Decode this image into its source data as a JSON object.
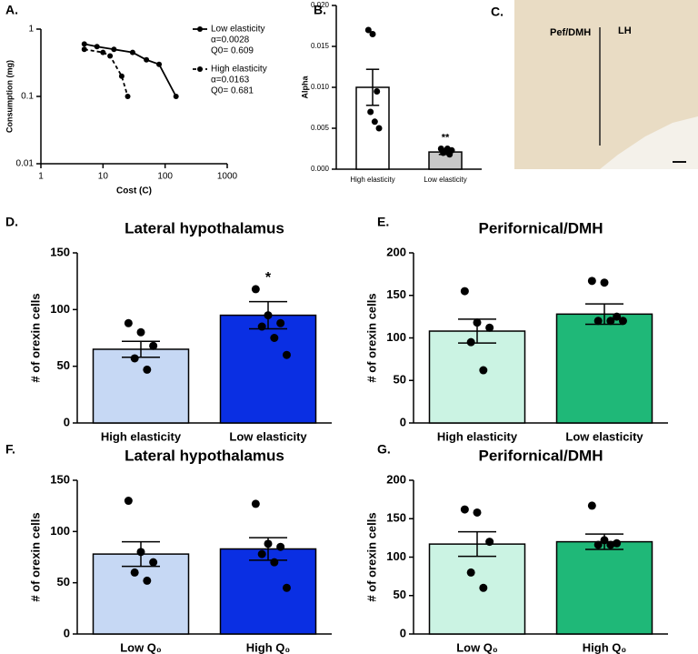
{
  "chart_data": [
    {
      "type": "line",
      "panel": "A.",
      "xlabel": "Cost (C)",
      "ylabel": "Consumption (mg)",
      "xscale": "log",
      "yscale": "log",
      "xlim": [
        1,
        1000
      ],
      "xticks": [
        1,
        10,
        100,
        1000
      ],
      "ylim": [
        0.01,
        1
      ],
      "yticks": [
        0.01,
        0.1,
        1
      ],
      "legend": "right",
      "series": [
        {
          "name": "Low elasticity",
          "color": "#000000",
          "dashed": false,
          "notes": [
            "α=0.0028",
            "Q0= 0.609"
          ],
          "x": [
            5,
            8,
            15,
            30,
            50,
            80,
            150
          ],
          "values": [
            0.6,
            0.55,
            0.5,
            0.45,
            0.35,
            0.3,
            0.1
          ]
        },
        {
          "name": "High elasticity",
          "color": "#000000",
          "dashed": true,
          "notes": [
            "α=0.0163",
            "Q0= 0.681"
          ],
          "x": [
            5,
            10,
            13,
            20,
            25
          ],
          "values": [
            0.5,
            0.45,
            0.4,
            0.2,
            0.1
          ]
        }
      ]
    },
    {
      "type": "bar",
      "panel": "B.",
      "ylabel": "Alpha",
      "annotation": "**",
      "annotation_index": 1,
      "categories": [
        "High elasticity",
        "Low elasticity"
      ],
      "values": [
        0.01,
        0.0021
      ],
      "errors": [
        0.0022,
        0.0003
      ],
      "colors": [
        "#ffffff",
        "#c8c8c8"
      ],
      "points": [
        [
          0.017,
          0.0165,
          0.0095,
          0.007,
          0.0058,
          0.005
        ],
        [
          0.0025,
          0.0022,
          0.0018,
          0.002,
          0.0025,
          0.0023
        ]
      ],
      "ylim": [
        0,
        0.02
      ],
      "yticks": [
        {
          "value": 0,
          "label": "0.000"
        },
        {
          "value": 0.005,
          "label": "0.005"
        },
        {
          "value": 0.01,
          "label": "0.010"
        },
        {
          "value": 0.015,
          "label": "0.015"
        },
        {
          "value": 0.02,
          "label": "0.020"
        }
      ]
    },
    {
      "type": "image",
      "panel": "C.",
      "labels": [
        "Pef/DMH",
        "LH"
      ]
    },
    {
      "type": "bar",
      "panel": "D.",
      "title": "Lateral hypothalamus",
      "ylabel": "# of orexin cells",
      "annotation": "*",
      "annotation_index": 1,
      "categories": [
        "High elasticity",
        "Low elasticity"
      ],
      "values": [
        65,
        95
      ],
      "errors": [
        7,
        12
      ],
      "colors": [
        "#c6d8f4",
        "#0a2fe3"
      ],
      "points": [
        [
          88,
          80,
          68,
          57,
          47
        ],
        [
          118,
          95,
          88,
          85,
          75,
          60
        ]
      ],
      "ylim": [
        0,
        150
      ],
      "yticks": [
        0,
        50,
        100,
        150
      ]
    },
    {
      "type": "bar",
      "panel": "E.",
      "title": "Perifornical/DMH",
      "ylabel": "# of orexin cells",
      "categories": [
        "High elasticity",
        "Low elasticity"
      ],
      "values": [
        108,
        128
      ],
      "errors": [
        14,
        12
      ],
      "colors": [
        "#cbf3e3",
        "#1fb878"
      ],
      "points": [
        [
          155,
          118,
          112,
          95,
          62
        ],
        [
          167,
          165,
          125,
          120,
          120,
          120
        ]
      ],
      "ylim": [
        0,
        200
      ],
      "yticks": [
        0,
        50,
        100,
        150,
        200
      ]
    },
    {
      "type": "bar",
      "panel": "F.",
      "title": "Lateral hypothalamus",
      "ylabel": "# of orexin cells",
      "categories": [
        "Low Q₀",
        "High Q₀"
      ],
      "values": [
        78,
        83
      ],
      "errors": [
        12,
        11
      ],
      "colors": [
        "#c6d8f4",
        "#0a2fe3"
      ],
      "points": [
        [
          130,
          80,
          70,
          60,
          52
        ],
        [
          127,
          88,
          85,
          78,
          70,
          45
        ]
      ],
      "ylim": [
        0,
        150
      ],
      "yticks": [
        0,
        50,
        100,
        150
      ]
    },
    {
      "type": "bar",
      "panel": "G.",
      "title": "Perifornical/DMH",
      "ylabel": "# of orexin cells",
      "categories": [
        "Low Q₀",
        "High Q₀"
      ],
      "values": [
        117,
        120
      ],
      "errors": [
        16,
        10
      ],
      "colors": [
        "#cbf3e3",
        "#1fb878"
      ],
      "points": [
        [
          162,
          158,
          120,
          80,
          60
        ],
        [
          167,
          122,
          118,
          116,
          116
        ]
      ],
      "ylim": [
        0,
        200
      ],
      "yticks": [
        0,
        50,
        100,
        150,
        200
      ]
    }
  ]
}
